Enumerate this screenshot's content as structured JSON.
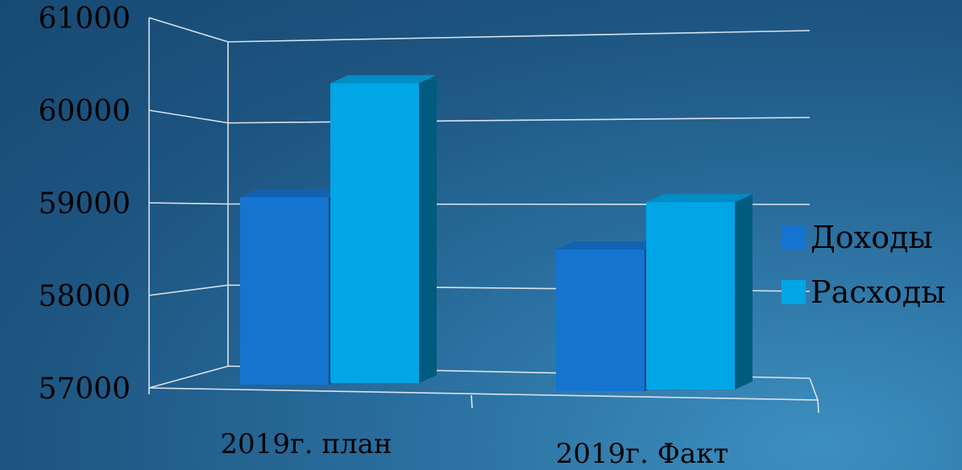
{
  "chart_data": {
    "type": "bar",
    "categories": [
      "2019г. план",
      "2019г. Факт"
    ],
    "series": [
      {
        "name": "Доходы",
        "values": [
          59250,
          58700
        ]
      },
      {
        "name": "Расходы",
        "values": [
          60600,
          59250
        ]
      }
    ],
    "title": "",
    "xlabel": "",
    "ylabel": "",
    "ylim": [
      57000,
      61000
    ],
    "yticks": [
      "57000",
      "58000",
      "59000",
      "60000",
      "61000"
    ],
    "grid": true,
    "legend": "right",
    "style": "3d-column",
    "colors": {
      "Доходы": "#1474d0",
      "Расходы": "#00a6e6",
      "background": "#1d5480",
      "gridline": "#d9e4ee"
    }
  }
}
